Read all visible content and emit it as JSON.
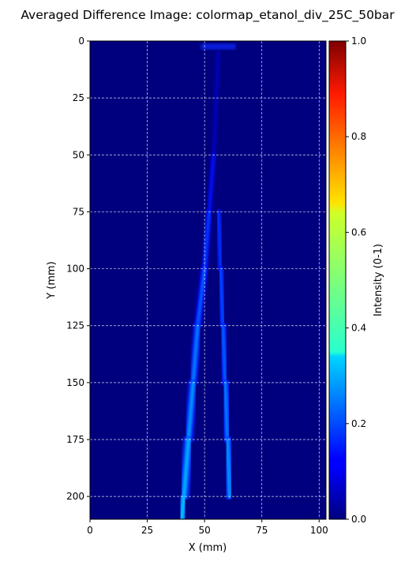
{
  "chart_data": {
    "type": "heatmap",
    "title": "Averaged Difference Image: colormap_etanol_div_25C_50bar",
    "xlabel": "X (mm)",
    "ylabel": "Y (mm)",
    "xlim": [
      0,
      103
    ],
    "ylim": [
      210,
      0
    ],
    "y_inverted": true,
    "grid": true,
    "x_ticks": [
      0,
      25,
      50,
      75,
      100
    ],
    "y_ticks": [
      0,
      25,
      50,
      75,
      100,
      125,
      150,
      175,
      200
    ],
    "colormap": "jet",
    "colorbar": {
      "label": "Intensity (0-1)",
      "range": [
        0.0,
        1.0
      ],
      "ticks": [
        "0.0",
        "0.2",
        "0.4",
        "0.6",
        "0.8",
        "1.0"
      ]
    },
    "features": {
      "nozzle_tip": {
        "x": 56,
        "y": 5
      },
      "jets": [
        {
          "side": "left",
          "centerline": [
            [
              56,
              5
            ],
            [
              54,
              50
            ],
            [
              52,
              75
            ],
            [
              50,
              100
            ],
            [
              47,
              125
            ],
            [
              45,
              150
            ],
            [
              43,
              175
            ],
            [
              41,
              200
            ],
            [
              40,
              210
            ]
          ],
          "intensity": [
            0.05,
            0.12,
            0.18,
            0.22,
            0.25,
            0.27,
            0.29,
            0.31,
            0.32
          ]
        },
        {
          "side": "right",
          "centerline": [
            [
              56,
              5
            ],
            [
              56,
              50
            ],
            [
              56,
              75
            ],
            [
              57,
              100
            ],
            [
              58,
              125
            ],
            [
              59,
              150
            ],
            [
              60,
              175
            ],
            [
              61,
              200
            ],
            [
              61,
              210
            ]
          ],
          "intensity": [
            0.05,
            0.12,
            0.18,
            0.2,
            0.22,
            0.24,
            0.26,
            0.28,
            0.3
          ]
        }
      ]
    }
  }
}
